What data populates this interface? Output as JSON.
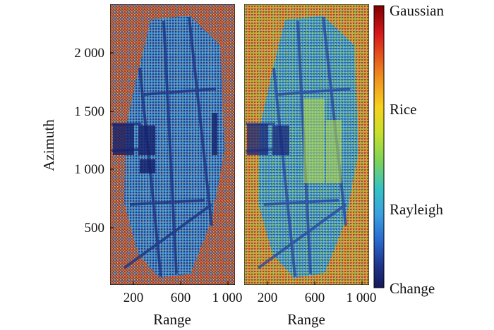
{
  "chart_data": [
    {
      "type": "heatmap",
      "xlabel": "Range",
      "ylabel": "Azimuth",
      "x_ticks": [
        200,
        600,
        1000
      ],
      "x_tick_labels": [
        "200",
        "600",
        "1 000"
      ],
      "y_ticks": [
        500,
        1000,
        1500,
        2000
      ],
      "y_tick_labels": [
        "500",
        "1 000",
        "1 500",
        "2 000"
      ],
      "xlim": [
        0,
        1050
      ],
      "ylim": [
        0,
        2350
      ]
    },
    {
      "type": "heatmap",
      "xlabel": "Range",
      "x_ticks": [
        200,
        600,
        1000
      ],
      "x_tick_labels": [
        "200",
        "600",
        "1 000"
      ],
      "xlim": [
        0,
        1050
      ],
      "ylim": [
        0,
        2350
      ]
    }
  ],
  "colorbar": {
    "labels": [
      "Gaussian",
      "Rice",
      "Rayleigh",
      "Change"
    ],
    "colors": [
      "#7f0000",
      "#d7191c",
      "#f08c1e",
      "#f6d21e",
      "#c8e02a",
      "#7ed35a",
      "#34c2c4",
      "#3aa0e0",
      "#2a6bd0",
      "#20348c",
      "#141a5a"
    ]
  }
}
